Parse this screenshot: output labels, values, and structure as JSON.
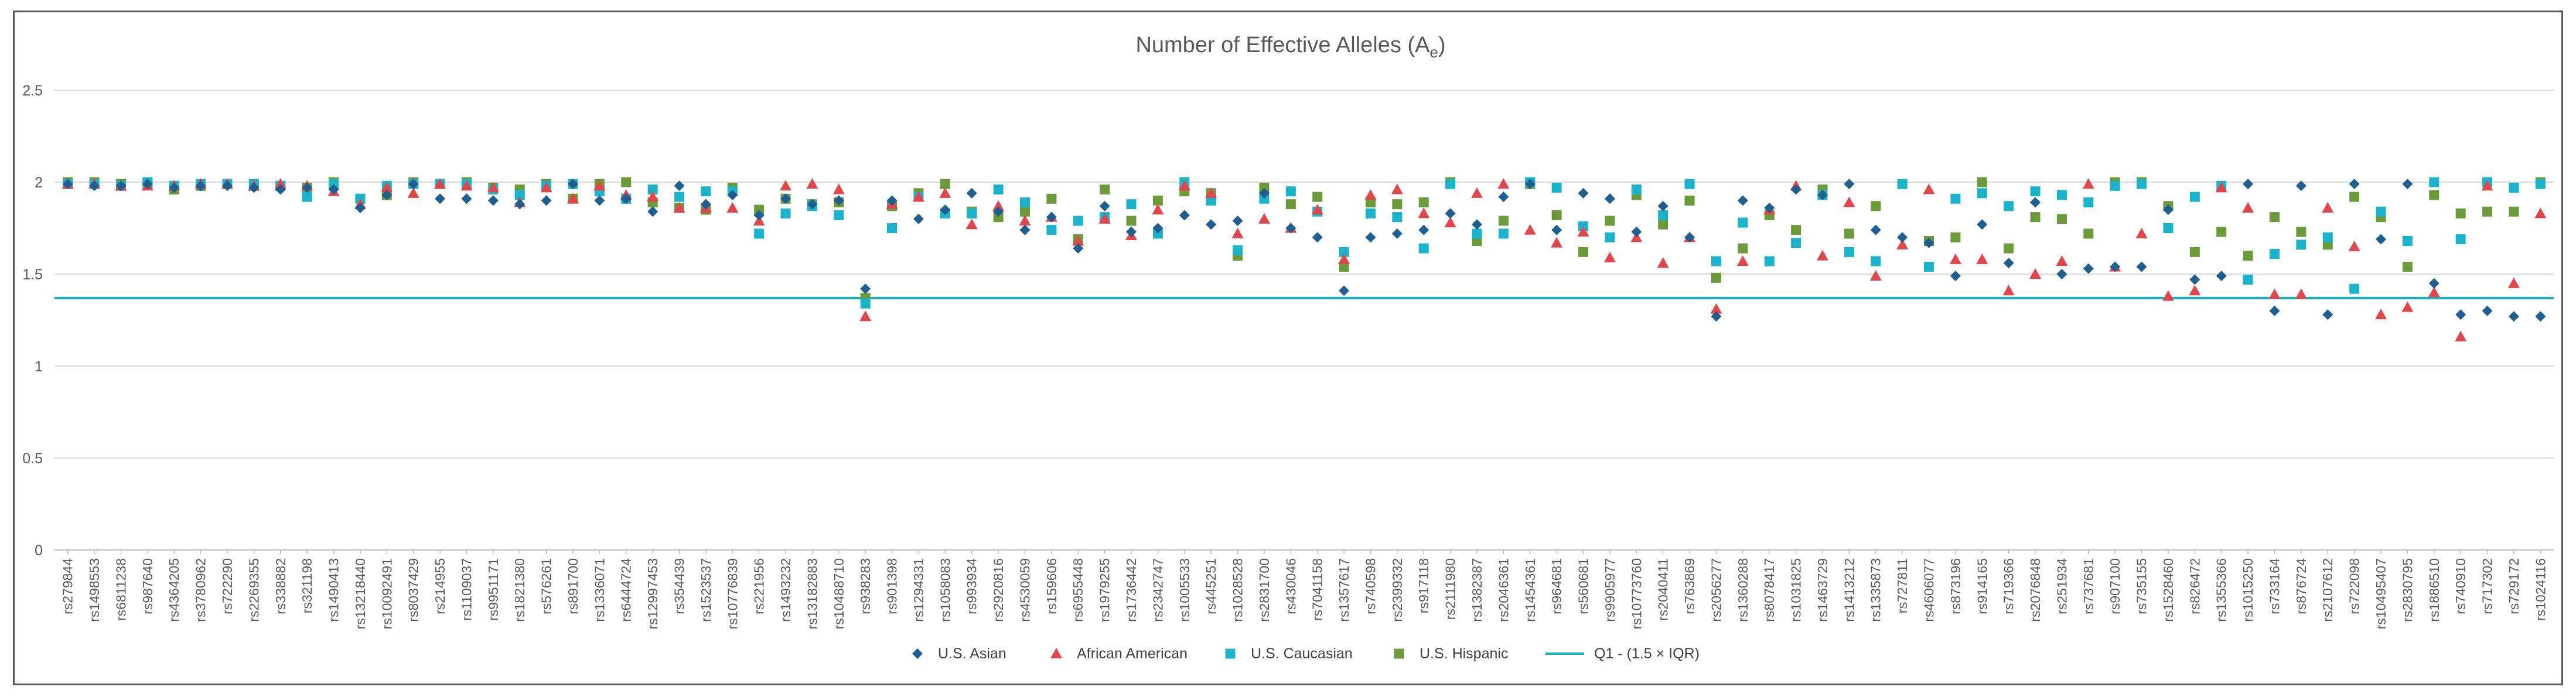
{
  "chart_data": {
    "type": "scatter",
    "title": "Number of Effective Alleles (A",
    "title_sub": "e",
    "title_end": ")",
    "xlabel": "",
    "ylabel": "",
    "ylim": [
      0,
      2.5
    ],
    "yticks": [
      "0",
      "0.5",
      "1",
      "1.5",
      "2",
      "2.5"
    ],
    "grid": true,
    "legend_position": "bottom",
    "threshold": {
      "name": "Q1 - (1.5 × IQR)",
      "value": 1.37,
      "color": "#17B1C4"
    },
    "categories": [
      "rs279844",
      "rs1498553",
      "rs6811238",
      "rs987640",
      "rs4364205",
      "rs3780962",
      "rs722290",
      "rs2269355",
      "rs338882",
      "rs321198",
      "rs1490413",
      "rs13218440",
      "rs10092491",
      "rs8037429",
      "rs214955",
      "rs1109037",
      "rs9951171",
      "rs1821380",
      "rs576261",
      "rs891700",
      "rs1336071",
      "rs6444724",
      "rs12997453",
      "rs354439",
      "rs1523537",
      "rs10776839",
      "rs221956",
      "rs1493232",
      "rs13182883",
      "rs10488710",
      "rs938283",
      "rs901398",
      "rs1294331",
      "rs1058083",
      "rs993934",
      "rs2920816",
      "rs4530059",
      "rs159606",
      "rs6955448",
      "rs1979255",
      "rs1736442",
      "rs2342747",
      "rs1005533",
      "rs445251",
      "rs1028528",
      "rs2831700",
      "rs430046",
      "rs7041158",
      "rs1357617",
      "rs740598",
      "rs2399332",
      "rs917118",
      "rs2111980",
      "rs1382387",
      "rs2046361",
      "rs1454361",
      "rs964681",
      "rs560681",
      "rs9905977",
      "rs10773760",
      "rs2040411",
      "rs763869",
      "rs2056277",
      "rs1360288",
      "rs8078417",
      "rs1031825",
      "rs1463729",
      "rs1413212",
      "rs1335873",
      "rs727811",
      "rs4606077",
      "rs873196",
      "rs914165",
      "rs719366",
      "rs2076848",
      "rs251934",
      "rs737681",
      "rs907100",
      "rs735155",
      "rs1528460",
      "rs826472",
      "rs1355366",
      "rs1015250",
      "rs733164",
      "rs876724",
      "rs2107612",
      "rs722098",
      "rs10495407",
      "rs2830795",
      "rs1886510",
      "rs740910",
      "rs717302",
      "rs729172",
      "rs1024116"
    ],
    "series": [
      {
        "name": "U.S. Asian",
        "color": "#1F5E8E",
        "marker": "diamond",
        "values": [
          1.99,
          1.98,
          1.98,
          1.99,
          1.97,
          1.98,
          1.98,
          1.97,
          1.96,
          1.97,
          1.96,
          1.86,
          1.93,
          1.99,
          1.91,
          1.91,
          1.9,
          1.88,
          1.9,
          1.99,
          1.9,
          1.91,
          1.84,
          1.98,
          1.88,
          1.93,
          1.82,
          1.91,
          1.88,
          1.9,
          1.42,
          1.9,
          1.8,
          1.85,
          1.94,
          1.84,
          1.74,
          1.81,
          1.64,
          1.87,
          1.73,
          1.75,
          1.82,
          1.77,
          1.79,
          1.94,
          1.75,
          1.7,
          1.41,
          1.7,
          1.72,
          1.74,
          1.83,
          1.77,
          1.92,
          1.99,
          1.74,
          1.94,
          1.91,
          1.73,
          1.87,
          1.7,
          1.27,
          1.9,
          1.86,
          1.96,
          1.93,
          1.99,
          1.74,
          1.7,
          1.67,
          1.49,
          1.77,
          1.56,
          1.89,
          1.5,
          1.53,
          1.54,
          1.54,
          1.85,
          1.47,
          1.49,
          1.99,
          1.3,
          1.98,
          1.28,
          1.99,
          1.69,
          1.99,
          1.45,
          1.28,
          1.3,
          1.27,
          1.27
        ]
      },
      {
        "name": "African American",
        "color": "#E0474C",
        "marker": "triangle",
        "values": [
          1.99,
          1.99,
          1.98,
          1.98,
          1.98,
          1.99,
          1.99,
          1.98,
          1.99,
          1.98,
          1.95,
          1.88,
          1.97,
          1.94,
          1.99,
          1.98,
          1.97,
          1.89,
          1.97,
          1.91,
          1.98,
          1.93,
          1.92,
          1.86,
          1.86,
          1.86,
          1.79,
          1.98,
          1.99,
          1.96,
          1.27,
          1.88,
          1.92,
          1.94,
          1.77,
          1.87,
          1.79,
          1.81,
          1.68,
          1.8,
          1.71,
          1.85,
          1.98,
          1.94,
          1.72,
          1.8,
          1.75,
          1.85,
          1.58,
          1.93,
          1.96,
          1.83,
          1.78,
          1.94,
          1.99,
          1.74,
          1.67,
          1.73,
          1.59,
          1.7,
          1.56,
          1.7,
          1.31,
          1.57,
          1.85,
          1.98,
          1.6,
          1.89,
          1.49,
          1.66,
          1.96,
          1.58,
          1.58,
          1.41,
          1.5,
          1.57,
          1.99,
          1.54,
          1.72,
          1.38,
          1.41,
          1.97,
          1.86,
          1.39,
          1.39,
          1.86,
          1.65,
          1.28,
          1.32,
          1.4,
          1.16,
          1.98,
          1.45,
          1.83
        ]
      },
      {
        "name": "U.S. Caucasian",
        "color": "#1BB3C9",
        "marker": "square",
        "values": [
          1.99,
          1.99,
          1.98,
          2.0,
          1.98,
          1.99,
          1.99,
          1.99,
          1.98,
          1.92,
          1.99,
          1.91,
          1.98,
          1.99,
          1.99,
          1.99,
          1.96,
          1.93,
          1.98,
          1.99,
          1.95,
          1.91,
          1.96,
          1.92,
          1.95,
          1.95,
          1.72,
          1.83,
          1.87,
          1.82,
          1.34,
          1.75,
          1.92,
          1.83,
          1.83,
          1.96,
          1.89,
          1.74,
          1.79,
          1.81,
          1.88,
          1.72,
          2.0,
          1.9,
          1.63,
          1.91,
          1.95,
          1.84,
          1.62,
          1.83,
          1.81,
          1.64,
          1.99,
          1.72,
          1.72,
          2.0,
          1.97,
          1.76,
          1.7,
          1.96,
          1.82,
          1.99,
          1.57,
          1.78,
          1.57,
          1.67,
          1.93,
          1.62,
          1.57,
          1.99,
          1.54,
          1.91,
          1.94,
          1.87,
          1.95,
          1.93,
          1.89,
          1.98,
          1.99,
          1.75,
          1.92,
          1.98,
          1.47,
          1.61,
          1.66,
          1.7,
          1.42,
          1.84,
          1.68,
          2.0,
          1.69,
          2.0,
          1.97,
          1.99
        ]
      },
      {
        "name": "U.S. Hispanic",
        "color": "#6A9A3A",
        "marker": "square",
        "values": [
          2.0,
          2.0,
          1.99,
          1.99,
          1.96,
          1.98,
          1.99,
          1.98,
          1.98,
          1.97,
          2.0,
          1.91,
          1.93,
          2.0,
          1.99,
          2.0,
          1.97,
          1.96,
          1.99,
          1.91,
          1.99,
          2.0,
          1.89,
          1.86,
          1.85,
          1.97,
          1.85,
          1.91,
          1.88,
          1.89,
          1.37,
          1.87,
          1.94,
          1.99,
          1.84,
          1.81,
          1.84,
          1.91,
          1.69,
          1.96,
          1.79,
          1.9,
          1.95,
          1.94,
          1.6,
          1.97,
          1.88,
          1.92,
          1.54,
          1.89,
          1.88,
          1.89,
          2.0,
          1.68,
          1.79,
          1.99,
          1.82,
          1.62,
          1.79,
          1.93,
          1.77,
          1.9,
          1.48,
          1.64,
          1.82,
          1.74,
          1.96,
          1.72,
          1.87,
          1.99,
          1.68,
          1.7,
          2.0,
          1.64,
          1.81,
          1.8,
          1.72,
          2.0,
          2.0,
          1.87,
          1.62,
          1.73,
          1.6,
          1.81,
          1.73,
          1.66,
          1.92,
          1.81,
          1.54,
          1.93,
          1.83,
          1.84,
          1.84,
          2.0
        ]
      }
    ]
  }
}
